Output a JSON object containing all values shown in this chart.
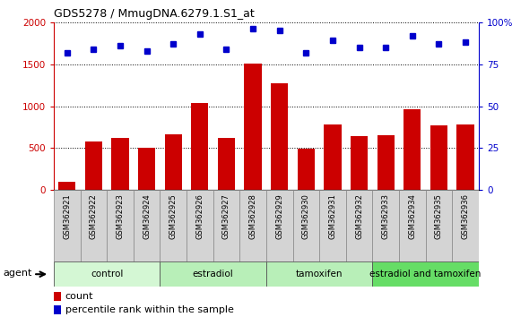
{
  "title": "GDS5278 / MmugDNA.6279.1.S1_at",
  "samples": [
    "GSM362921",
    "GSM362922",
    "GSM362923",
    "GSM362924",
    "GSM362925",
    "GSM362926",
    "GSM362927",
    "GSM362928",
    "GSM362929",
    "GSM362930",
    "GSM362931",
    "GSM362932",
    "GSM362933",
    "GSM362934",
    "GSM362935",
    "GSM362936"
  ],
  "bar_values": [
    100,
    580,
    620,
    510,
    670,
    1040,
    620,
    1510,
    1270,
    490,
    780,
    640,
    650,
    960,
    770,
    780
  ],
  "dot_values": [
    82,
    84,
    86,
    83,
    87,
    93,
    84,
    96,
    95,
    82,
    89,
    85,
    85,
    92,
    87,
    88
  ],
  "bar_color": "#cc0000",
  "dot_color": "#0000cc",
  "ylim_left": [
    0,
    2000
  ],
  "ylim_right": [
    0,
    100
  ],
  "yticks_left": [
    0,
    500,
    1000,
    1500,
    2000
  ],
  "yticks_right": [
    0,
    25,
    50,
    75,
    100
  ],
  "groups": [
    {
      "label": "control",
      "start": 0,
      "end": 4
    },
    {
      "label": "estradiol",
      "start": 4,
      "end": 8
    },
    {
      "label": "tamoxifen",
      "start": 8,
      "end": 12
    },
    {
      "label": "estradiol and tamoxifen",
      "start": 12,
      "end": 16
    }
  ],
  "group_bg_colors": [
    "#ccffcc",
    "#aaffaa",
    "#aaffaa",
    "#66dd66"
  ],
  "sample_box_color": "#cccccc",
  "agent_label": "agent",
  "legend_count_label": "count",
  "legend_pct_label": "percentile rank within the sample",
  "bar_color_legend": "#cc0000",
  "dot_color_legend": "#0000cc"
}
